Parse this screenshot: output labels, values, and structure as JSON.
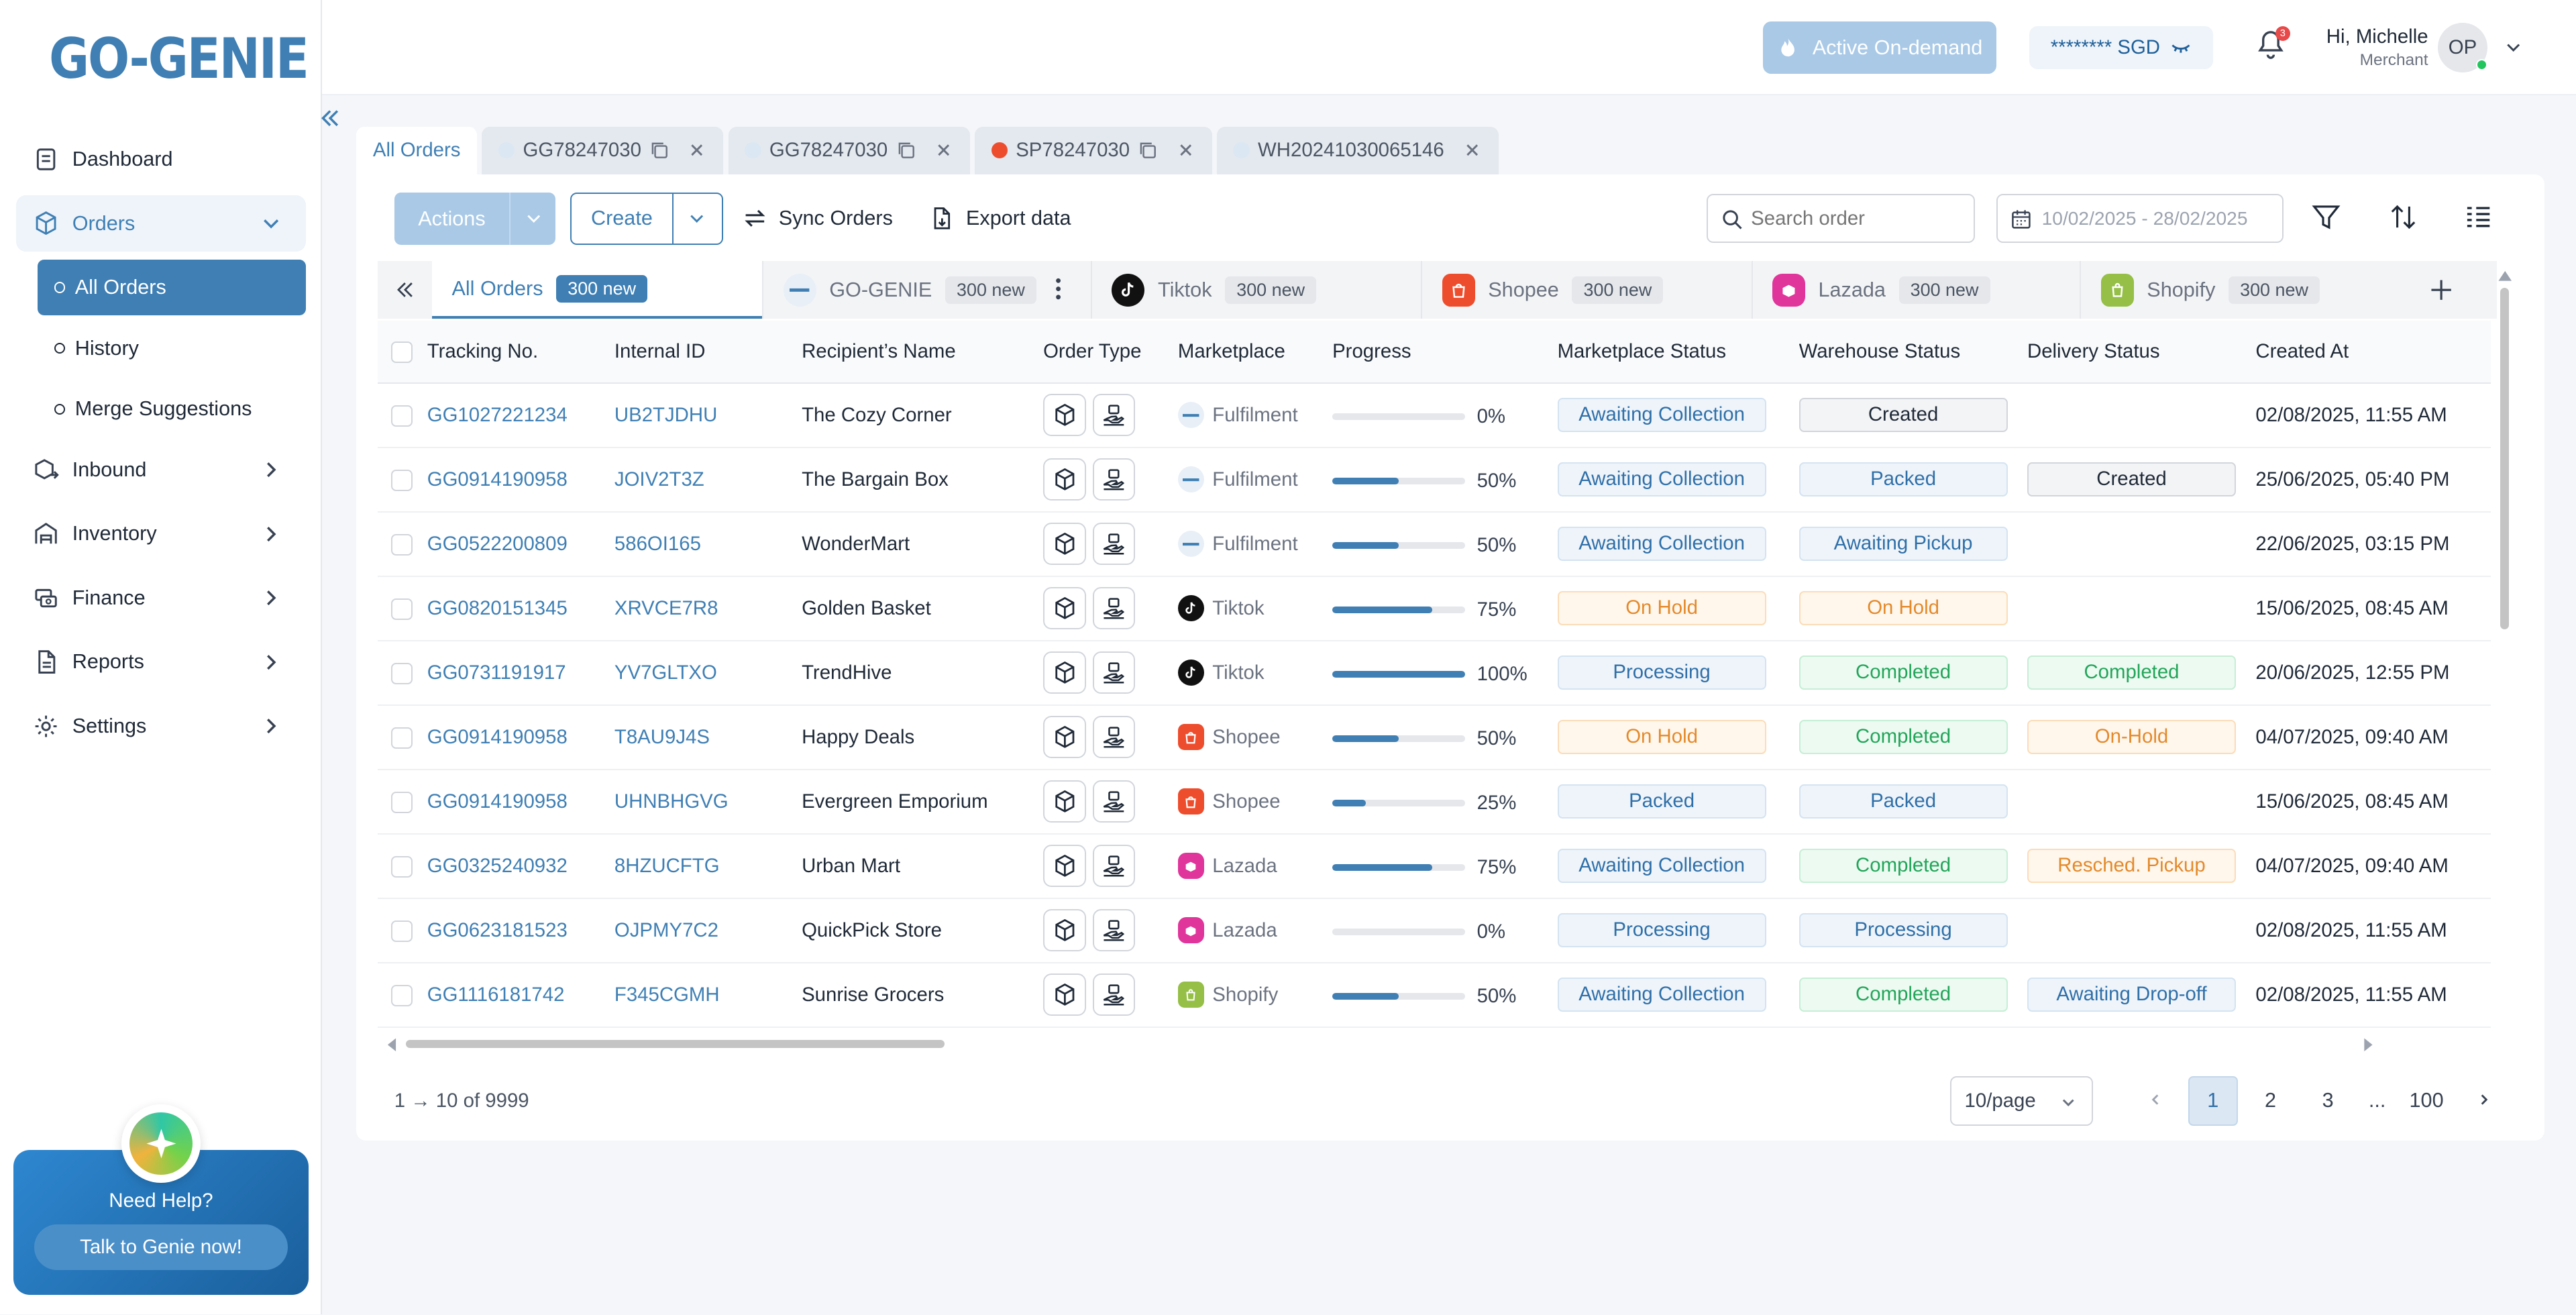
{
  "sidebar": {
    "logo": "GO-GENIE",
    "nav": [
      {
        "label": "Dashboard"
      },
      {
        "label": "Orders"
      },
      {
        "label": "Inbound"
      },
      {
        "label": "Inventory"
      },
      {
        "label": "Finance"
      },
      {
        "label": "Reports"
      },
      {
        "label": "Settings"
      }
    ],
    "orders_sub": [
      "All Orders",
      "History",
      "Merge Suggestions"
    ],
    "help": {
      "title": "Need Help?",
      "button": "Talk to Genie now!"
    }
  },
  "topbar": {
    "on_demand": "Active On-demand",
    "balance": "******** SGD",
    "notifications": "3",
    "user_greeting": "Hi, Michelle",
    "user_role": "Merchant",
    "avatar": "OP"
  },
  "doc_tabs": [
    "All Orders",
    "GG78247030",
    "GG78247030",
    "SP78247030",
    "WH20241030065146"
  ],
  "toolbar": {
    "actions": "Actions",
    "create": "Create",
    "sync": "Sync Orders",
    "export": "Export data",
    "search_placeholder": "Search order",
    "date_range": "10/02/2025 - 28/02/2025"
  },
  "market_tabs": [
    {
      "label": "All Orders",
      "count": "300 new"
    },
    {
      "label": "GO-GENIE",
      "count": "300 new"
    },
    {
      "label": "Tiktok",
      "count": "300 new"
    },
    {
      "label": "Shopee",
      "count": "300 new"
    },
    {
      "label": "Lazada",
      "count": "300 new"
    },
    {
      "label": "Shopify",
      "count": "300 new"
    }
  ],
  "table": {
    "headers": [
      "Tracking No.",
      "Internal ID",
      "Recipient’s Name",
      "Order Type",
      "Marketplace",
      "Progress",
      "Marketplace Status",
      "Warehouse Status",
      "Delivery Status",
      "Created At"
    ],
    "rows": [
      {
        "tracking": "GG1027221234",
        "internal": "UB2TJDHU",
        "recipient": "The Cozy Corner",
        "marketplace": "Fulfilment",
        "progress": 0,
        "progress_label": "0%",
        "mstatus": "Awaiting Collection",
        "wstatus": "Created",
        "dstatus": "",
        "created": "02/08/2025, 11:55 AM"
      },
      {
        "tracking": "GG0914190958",
        "internal": "JOIV2T3Z",
        "recipient": "The Bargain Box",
        "marketplace": "Fulfilment",
        "progress": 50,
        "progress_label": "50%",
        "mstatus": "Awaiting Collection",
        "wstatus": "Packed",
        "dstatus": "Created",
        "created": "25/06/2025, 05:40 PM"
      },
      {
        "tracking": "GG0522200809",
        "internal": "586OI165",
        "recipient": "WonderMart",
        "marketplace": "Fulfilment",
        "progress": 50,
        "progress_label": "50%",
        "mstatus": "Awaiting Collection",
        "wstatus": "Awaiting Pickup",
        "dstatus": "",
        "created": "22/06/2025, 03:15 PM"
      },
      {
        "tracking": "GG0820151345",
        "internal": "XRVCE7R8",
        "recipient": "Golden Basket",
        "marketplace": "Tiktok",
        "progress": 75,
        "progress_label": "75%",
        "mstatus": "On Hold",
        "wstatus": "On Hold",
        "dstatus": "",
        "created": "15/06/2025, 08:45 AM"
      },
      {
        "tracking": "GG0731191917",
        "internal": "YV7GLTXO",
        "recipient": "TrendHive",
        "marketplace": "Tiktok",
        "progress": 100,
        "progress_label": "100%",
        "mstatus": "Processing",
        "wstatus": "Completed",
        "dstatus": "Completed",
        "created": "20/06/2025, 12:55 PM"
      },
      {
        "tracking": "GG0914190958",
        "internal": "T8AU9J4S",
        "recipient": "Happy Deals",
        "marketplace": "Shopee",
        "progress": 50,
        "progress_label": "50%",
        "mstatus": "On Hold",
        "wstatus": "Completed",
        "dstatus": "On-Hold",
        "created": "04/07/2025, 09:40 AM"
      },
      {
        "tracking": "GG0914190958",
        "internal": "UHNBHGVG",
        "recipient": "Evergreen Emporium",
        "marketplace": "Shopee",
        "progress": 25,
        "progress_label": "25%",
        "mstatus": "Packed",
        "wstatus": "Packed",
        "dstatus": "",
        "created": "15/06/2025, 08:45 AM"
      },
      {
        "tracking": "GG0325240932",
        "internal": "8HZUCFTG",
        "recipient": "Urban Mart",
        "marketplace": "Lazada",
        "progress": 75,
        "progress_label": "75%",
        "mstatus": "Awaiting Collection",
        "wstatus": "Completed",
        "dstatus": "Resched. Pickup",
        "created": "04/07/2025, 09:40 AM"
      },
      {
        "tracking": "GG0623181523",
        "internal": "OJPMY7C2",
        "recipient": "QuickPick Store",
        "marketplace": "Lazada",
        "progress": 0,
        "progress_label": "0%",
        "mstatus": "Processing",
        "wstatus": "Processing",
        "dstatus": "",
        "created": "02/08/2025, 11:55 AM"
      },
      {
        "tracking": "GG1116181742",
        "internal": "F345CGMH",
        "recipient": "Sunrise Grocers",
        "marketplace": "Shopify",
        "progress": 50,
        "progress_label": "50%",
        "mstatus": "Awaiting Collection",
        "wstatus": "Completed",
        "dstatus": "Awaiting Drop-off",
        "created": "02/08/2025, 11:55 AM"
      }
    ]
  },
  "pagination": {
    "summary": "1 → 10 of 9999",
    "per_page": "10/page",
    "pages": [
      "1",
      "2",
      "3",
      "...",
      "100"
    ]
  },
  "colors": {
    "brand": "#3f7fb4",
    "tiktok": "#111111",
    "shopee": "#ee4d2d",
    "lazada": "#e0359b",
    "shopify": "#95bf47"
  }
}
